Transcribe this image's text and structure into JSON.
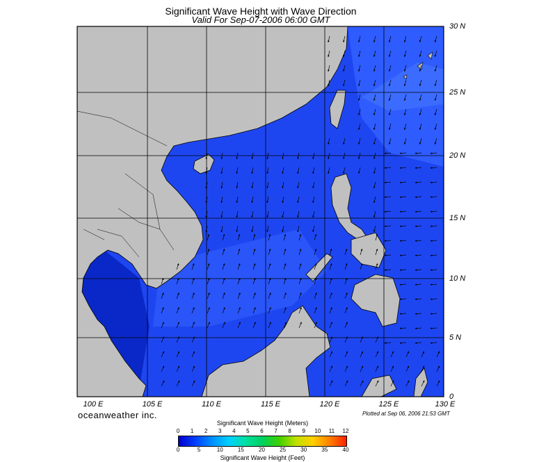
{
  "title": "Significant Wave Height with Wave Direction",
  "subtitle": "Valid For Sep-07-2006 06:00 GMT",
  "brand": "oceanweather inc.",
  "plotted": "Plotted at Sep 06, 2006 21:53 GMT",
  "map": {
    "lon_range": [
      99,
      130
    ],
    "lat_range": [
      0,
      30
    ],
    "lon_labels": [
      "100 E",
      "105 E",
      "110 E",
      "115 E",
      "120 E",
      "125 E",
      "130 E"
    ],
    "lat_labels": [
      "30 N",
      "25 N",
      "20 N",
      "15 N",
      "10 N",
      "5 N",
      "0"
    ],
    "colors": {
      "land": "#c0c0c0",
      "sea": "#1e46f0",
      "sea_light": "#2f5cff",
      "sea_dark": "#0a28c8",
      "grid": "#000000"
    }
  },
  "colorbar": {
    "title_meters": "Significant Wave Height (Meters)",
    "title_feet": "Significant Wave Height (Feet)",
    "meters_ticks": [
      "0",
      "1",
      "2",
      "3",
      "4",
      "5",
      "6",
      "7",
      "8",
      "9",
      "10",
      "11",
      "12"
    ],
    "feet_ticks": [
      "0",
      "5",
      "10",
      "15",
      "20",
      "25",
      "30",
      "35",
      "40"
    ]
  }
}
